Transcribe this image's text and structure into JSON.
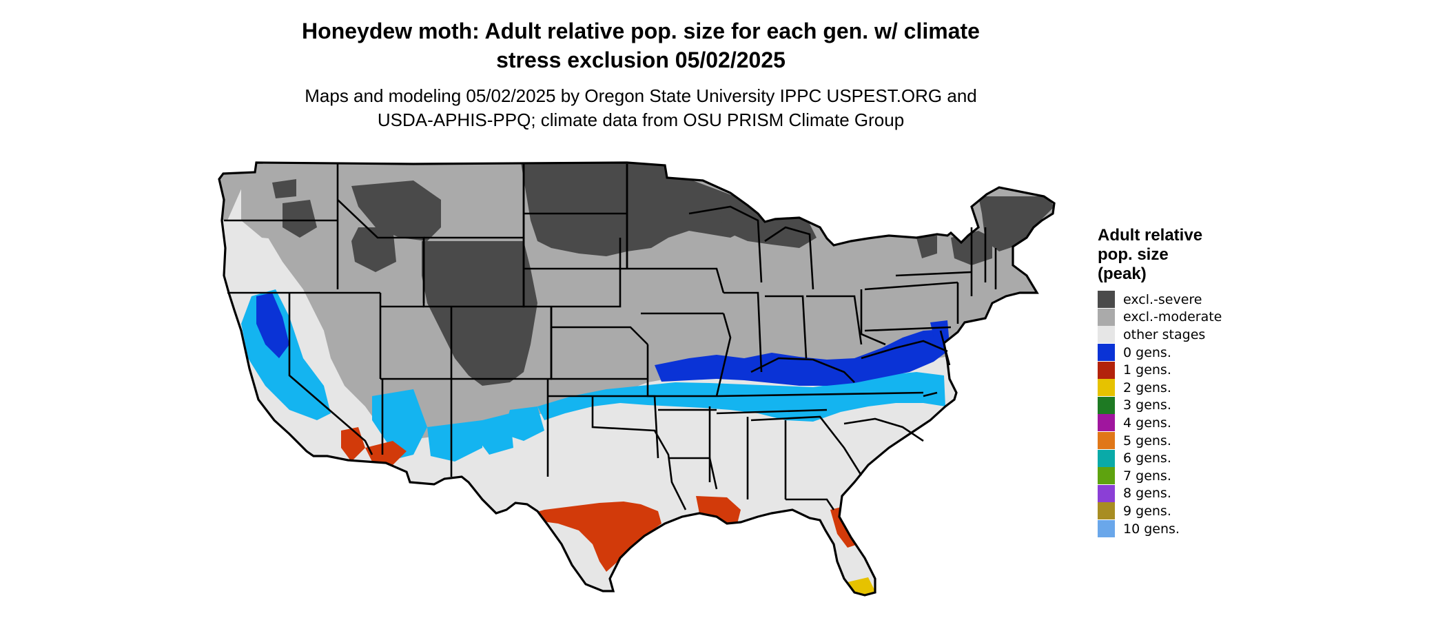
{
  "title": {
    "line1": "Honeydew moth: Adult relative pop. size for each gen. w/ climate",
    "line2": "stress exclusion 05/02/2025"
  },
  "subtitle": {
    "line1": "Maps and modeling 05/02/2025 by Oregon State University IPPC USPEST.ORG and",
    "line2": "USDA-APHIS-PPQ; climate data from OSU PRISM Climate Group"
  },
  "legend": {
    "title_lines": [
      "Adult relative",
      "pop. size",
      "(peak)"
    ],
    "items": [
      {
        "label": "excl.-severe",
        "color": "#4a4a4a"
      },
      {
        "label": "excl.-moderate",
        "color": "#aaaaaa"
      },
      {
        "label": "other stages",
        "color": "#e6e6e6"
      },
      {
        "label": "0 gens.",
        "color": "#0a33d6"
      },
      {
        "label": "1 gens.",
        "color": "#b3230c"
      },
      {
        "label": "2 gens.",
        "color": "#e6c200"
      },
      {
        "label": "3 gens.",
        "color": "#1e7a23"
      },
      {
        "label": "4 gens.",
        "color": "#a0169e"
      },
      {
        "label": "5 gens.",
        "color": "#e07718"
      },
      {
        "label": "6 gens.",
        "color": "#0aaaa8"
      },
      {
        "label": "7 gens.",
        "color": "#5ea30f"
      },
      {
        "label": "8 gens.",
        "color": "#8b3fd6"
      },
      {
        "label": "9 gens.",
        "color": "#a88d22"
      },
      {
        "label": "10 gens.",
        "color": "#6aa7ea"
      }
    ]
  },
  "map": {
    "region": "contiguous United States",
    "colors": {
      "severe": "#4a4a4a",
      "moderate": "#aaaaaa",
      "other": "#e6e6e6",
      "zero_gens": "#0a33d6",
      "zero_gens_light": "#14b4f0",
      "one_gen": "#d23a0a",
      "two_gens": "#e6c200",
      "border": "#000000"
    }
  }
}
